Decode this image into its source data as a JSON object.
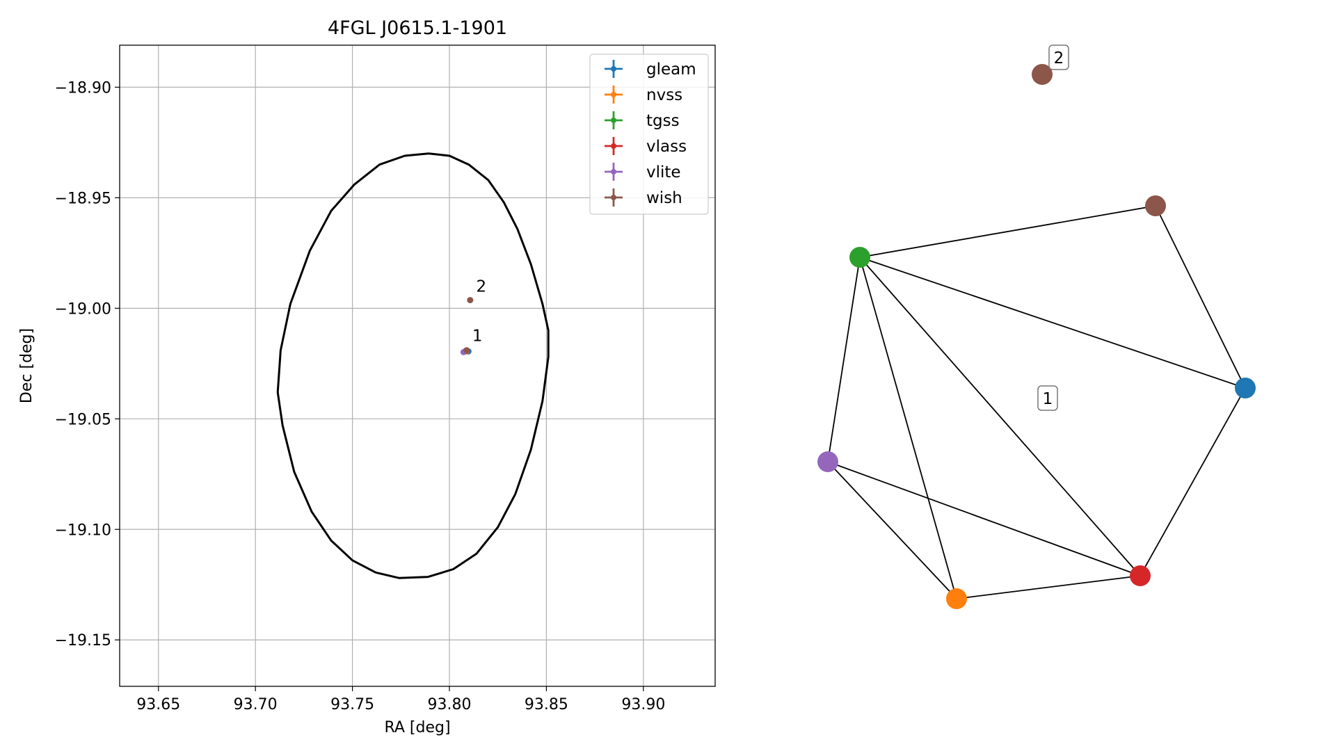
{
  "chart_data": [
    {
      "type": "scatter",
      "title": "4FGL J0615.1-1901",
      "xlabel": "RA [deg]",
      "ylabel": "Dec [deg]",
      "xlim": [
        93.63,
        93.937
      ],
      "ylim": [
        -19.171,
        -18.881
      ],
      "grid": true,
      "x_ticks": [
        93.65,
        93.7,
        93.75,
        93.8,
        93.85,
        93.9
      ],
      "x_tick_labels": [
        "93.65",
        "93.70",
        "93.75",
        "93.80",
        "93.85",
        "93.90"
      ],
      "y_ticks": [
        -18.9,
        -18.95,
        -19.0,
        -19.05,
        -19.1,
        -19.15
      ],
      "y_tick_labels": [
        "−18.90",
        "−18.95",
        "−19.00",
        "−19.05",
        "−19.10",
        "−19.15"
      ],
      "legend_position": "upper right",
      "series": [
        {
          "name": "gleam",
          "color": "#1f77b4",
          "x": [
            93.8098
          ],
          "y": [
            -19.0195
          ]
        },
        {
          "name": "nvss",
          "color": "#ff7f0e",
          "x": [
            93.8087
          ],
          "y": [
            -19.0195
          ]
        },
        {
          "name": "tgss",
          "color": "#2ca02c",
          "x": [
            93.8085
          ],
          "y": [
            -19.0193
          ]
        },
        {
          "name": "vlass",
          "color": "#d62728",
          "x": [
            93.8086
          ],
          "y": [
            -19.0192
          ]
        },
        {
          "name": "vlite",
          "color": "#9467bd",
          "x": [
            93.8073
          ],
          "y": [
            -19.0198
          ]
        },
        {
          "name": "wish",
          "color": "#8c564b",
          "x": [
            93.8107,
            93.8089
          ],
          "y": [
            -18.9963,
            -19.019
          ]
        }
      ],
      "ellipse": {
        "color": "#000000",
        "points": [
          [
            93.7893,
            -18.93
          ],
          [
            93.8,
            -18.931
          ],
          [
            93.81,
            -18.935
          ],
          [
            93.82,
            -18.942
          ],
          [
            93.828,
            -18.952
          ],
          [
            93.835,
            -18.964
          ],
          [
            93.842,
            -18.98
          ],
          [
            93.848,
            -18.998
          ],
          [
            93.851,
            -19.01
          ],
          [
            93.851,
            -19.022
          ],
          [
            93.848,
            -19.042
          ],
          [
            93.842,
            -19.064
          ],
          [
            93.834,
            -19.084
          ],
          [
            93.825,
            -19.099
          ],
          [
            93.814,
            -19.111
          ],
          [
            93.802,
            -19.118
          ],
          [
            93.789,
            -19.1215
          ],
          [
            93.774,
            -19.122
          ],
          [
            93.762,
            -19.1195
          ],
          [
            93.75,
            -19.114
          ],
          [
            93.739,
            -19.105
          ],
          [
            93.729,
            -19.092
          ],
          [
            93.72,
            -19.074
          ],
          [
            93.714,
            -19.053
          ],
          [
            93.7115,
            -19.038
          ],
          [
            93.713,
            -19.019
          ],
          [
            93.718,
            -18.998
          ],
          [
            93.728,
            -18.974
          ],
          [
            93.739,
            -18.956
          ],
          [
            93.751,
            -18.944
          ],
          [
            93.764,
            -18.935
          ],
          [
            93.777,
            -18.931
          ],
          [
            93.7893,
            -18.93
          ]
        ]
      },
      "annotations": [
        {
          "text": "1",
          "x": 93.8118,
          "y": -19.0148
        },
        {
          "text": "2",
          "x": 93.8138,
          "y": -18.9925
        }
      ]
    },
    {
      "type": "network",
      "nodes": [
        {
          "id": "gleam",
          "color": "#1f77b4"
        },
        {
          "id": "nvss",
          "color": "#ff7f0e"
        },
        {
          "id": "tgss",
          "color": "#2ca02c"
        },
        {
          "id": "vlass",
          "color": "#d62728"
        },
        {
          "id": "vlite",
          "color": "#9467bd"
        },
        {
          "id": "wish_1",
          "color": "#8c564b"
        },
        {
          "id": "wish_2",
          "color": "#8c564b"
        }
      ],
      "edges": [
        [
          "tgss",
          "wish_1"
        ],
        [
          "tgss",
          "gleam"
        ],
        [
          "tgss",
          "vlass"
        ],
        [
          "tgss",
          "nvss"
        ],
        [
          "tgss",
          "vlite"
        ],
        [
          "wish_1",
          "gleam"
        ],
        [
          "gleam",
          "vlass"
        ],
        [
          "vlass",
          "nvss"
        ],
        [
          "vlass",
          "vlite"
        ],
        [
          "nvss",
          "vlite"
        ]
      ],
      "cluster_labels": [
        {
          "text": "1"
        },
        {
          "text": "2"
        }
      ]
    }
  ]
}
